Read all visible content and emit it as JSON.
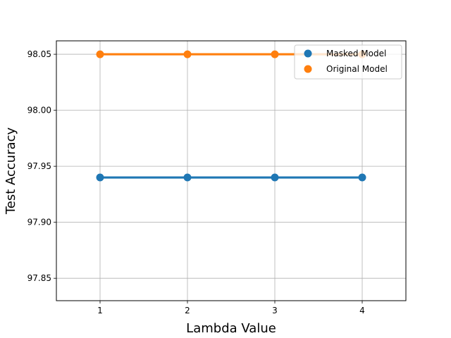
{
  "chart_data": {
    "type": "line",
    "title": "",
    "xlabel": "Lambda Value",
    "ylabel": "Test Accuracy",
    "x": [
      1,
      2,
      3,
      4
    ],
    "x_ticks": [
      "1",
      "2",
      "3",
      "4"
    ],
    "y_ticks": [
      "97.85",
      "97.90",
      "97.95",
      "98.00",
      "98.05"
    ],
    "xlim": [
      0.5,
      4.5
    ],
    "ylim": [
      97.83,
      98.062
    ],
    "grid": true,
    "legend_position": "top-right",
    "series": [
      {
        "name": "Masked Model",
        "color": "#1f77b4",
        "values": [
          97.94,
          97.94,
          97.94,
          97.94
        ]
      },
      {
        "name": "Original Model",
        "color": "#ff7f0e",
        "values": [
          98.05,
          98.05,
          98.05,
          98.05
        ]
      }
    ]
  }
}
